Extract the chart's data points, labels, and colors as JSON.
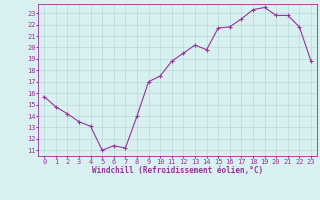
{
  "x": [
    0,
    1,
    2,
    3,
    4,
    5,
    6,
    7,
    8,
    9,
    10,
    11,
    12,
    13,
    14,
    15,
    16,
    17,
    18,
    19,
    20,
    21,
    22,
    23
  ],
  "y": [
    15.7,
    14.8,
    14.2,
    13.5,
    13.1,
    11.0,
    11.4,
    11.2,
    14.0,
    17.0,
    17.5,
    18.8,
    19.5,
    20.2,
    19.8,
    21.7,
    21.8,
    22.5,
    23.3,
    23.5,
    22.8,
    22.8,
    21.8,
    18.8
  ],
  "line_color": "#993399",
  "marker": "+",
  "marker_size": 3,
  "bg_color": "#d8f0f0",
  "grid_color": "#b8dada",
  "xlabel": "Windchill (Refroidissement éolien,°C)",
  "ylabel_ticks": [
    11,
    12,
    13,
    14,
    15,
    16,
    17,
    18,
    19,
    20,
    21,
    22,
    23
  ],
  "xlim": [
    -0.5,
    23.5
  ],
  "ylim": [
    10.5,
    23.8
  ],
  "axis_fontsize": 5.5,
  "tick_fontsize": 5.0
}
